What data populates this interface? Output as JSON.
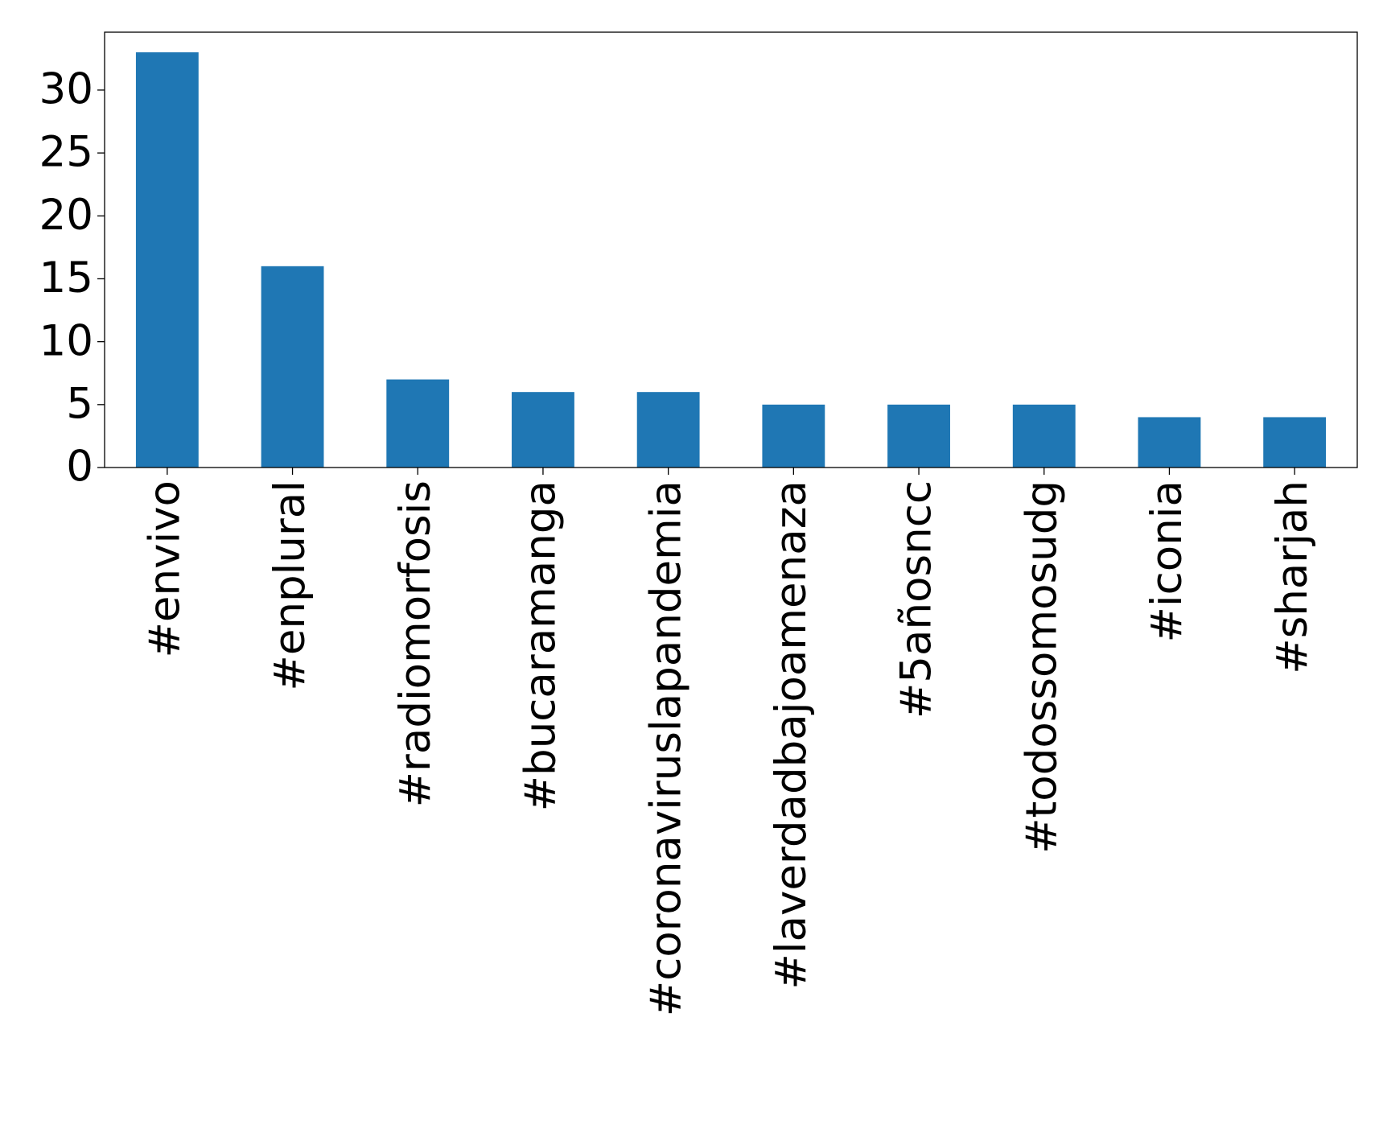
{
  "chart_data": {
    "type": "bar",
    "categories": [
      "#envivo",
      "#enplural",
      "#radiomorfosis",
      "#bucaramanga",
      "#coronaviruslapandemia",
      "#laverdadbajoamenaza",
      "#5añosncc",
      "#todossomosudg",
      "#iconia",
      "#sharjah"
    ],
    "values": [
      33,
      16,
      7,
      6,
      6,
      5,
      5,
      5,
      4,
      4
    ],
    "color": "#1f77b4",
    "ylim": [
      0,
      34.6
    ],
    "yticks": [
      0,
      5,
      10,
      15,
      20,
      25,
      30
    ],
    "grid": false
  }
}
